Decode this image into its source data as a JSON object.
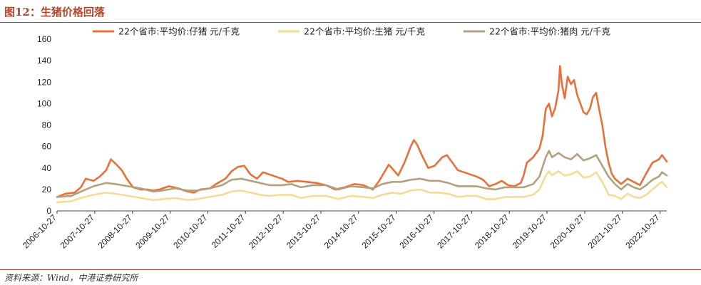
{
  "title": "图12：生猪价格回落",
  "source": "资料来源：Wind，中港证券研究所",
  "colors": {
    "accent": "#b5452b",
    "piglet": "#e8703a",
    "hog": "#f2dc96",
    "pork": "#b3a07e"
  },
  "chart_data": {
    "type": "line",
    "ylim": [
      0,
      160
    ],
    "yticks": [
      0,
      20,
      40,
      60,
      80,
      100,
      120,
      140,
      160
    ],
    "xlim": [
      "2006-10-27",
      "2022-12-31"
    ],
    "xticks": [
      "2006-10-27",
      "2007-10-27",
      "2008-10-27",
      "2009-10-27",
      "2010-10-27",
      "2011-10-27",
      "2012-10-27",
      "2013-10-27",
      "2014-10-27",
      "2015-10-27",
      "2016-10-27",
      "2017-10-27",
      "2018-10-27",
      "2019-10-27",
      "2020-10-27",
      "2021-10-27",
      "2022-10-27"
    ],
    "legend_position": "top",
    "series": [
      {
        "name": "22个省市:平均价:仔猪 元/千克",
        "color": "#e8703a",
        "points": [
          [
            "2006-10-27",
            13
          ],
          [
            "2007-01-15",
            16
          ],
          [
            "2007-04-15",
            17
          ],
          [
            "2007-06-15",
            22
          ],
          [
            "2007-08-01",
            30
          ],
          [
            "2007-10-15",
            28
          ],
          [
            "2007-12-15",
            32
          ],
          [
            "2008-02-15",
            38
          ],
          [
            "2008-04-01",
            48
          ],
          [
            "2008-05-15",
            44
          ],
          [
            "2008-07-15",
            38
          ],
          [
            "2008-09-01",
            30
          ],
          [
            "2008-11-01",
            22
          ],
          [
            "2009-01-15",
            20
          ],
          [
            "2009-03-15",
            20
          ],
          [
            "2009-05-15",
            19
          ],
          [
            "2009-07-15",
            20
          ],
          [
            "2009-10-15",
            23
          ],
          [
            "2010-01-15",
            21
          ],
          [
            "2010-04-15",
            18
          ],
          [
            "2010-06-15",
            17
          ],
          [
            "2010-08-15",
            20
          ],
          [
            "2010-11-15",
            21
          ],
          [
            "2011-01-15",
            25
          ],
          [
            "2011-04-15",
            30
          ],
          [
            "2011-06-15",
            37
          ],
          [
            "2011-08-15",
            41
          ],
          [
            "2011-10-15",
            42
          ],
          [
            "2011-12-15",
            34
          ],
          [
            "2012-02-15",
            30
          ],
          [
            "2012-04-15",
            36
          ],
          [
            "2012-07-15",
            33
          ],
          [
            "2012-10-15",
            30
          ],
          [
            "2012-12-15",
            27
          ],
          [
            "2013-03-15",
            28
          ],
          [
            "2013-06-15",
            27
          ],
          [
            "2013-09-15",
            26
          ],
          [
            "2013-12-15",
            24
          ],
          [
            "2014-03-15",
            20
          ],
          [
            "2014-06-15",
            22
          ],
          [
            "2014-09-15",
            25
          ],
          [
            "2014-12-15",
            24
          ],
          [
            "2015-03-15",
            20
          ],
          [
            "2015-05-15",
            28
          ],
          [
            "2015-07-15",
            38
          ],
          [
            "2015-08-15",
            43
          ],
          [
            "2015-09-15",
            40
          ],
          [
            "2015-11-15",
            33
          ],
          [
            "2016-01-15",
            45
          ],
          [
            "2016-03-15",
            60
          ],
          [
            "2016-04-15",
            66
          ],
          [
            "2016-05-15",
            62
          ],
          [
            "2016-07-01",
            52
          ],
          [
            "2016-09-01",
            40
          ],
          [
            "2016-11-01",
            42
          ],
          [
            "2017-01-15",
            50
          ],
          [
            "2017-03-01",
            52
          ],
          [
            "2017-04-15",
            46
          ],
          [
            "2017-06-15",
            38
          ],
          [
            "2017-08-15",
            36
          ],
          [
            "2017-10-15",
            34
          ],
          [
            "2017-12-15",
            32
          ],
          [
            "2018-02-15",
            29
          ],
          [
            "2018-04-15",
            23
          ],
          [
            "2018-06-15",
            25
          ],
          [
            "2018-08-15",
            28
          ],
          [
            "2018-10-15",
            24
          ],
          [
            "2018-12-15",
            23
          ],
          [
            "2019-02-15",
            26
          ],
          [
            "2019-03-15",
            33
          ],
          [
            "2019-04-15",
            45
          ],
          [
            "2019-06-15",
            50
          ],
          [
            "2019-08-15",
            58
          ],
          [
            "2019-09-15",
            70
          ],
          [
            "2019-10-15",
            95
          ],
          [
            "2019-11-15",
            100
          ],
          [
            "2019-12-15",
            88
          ],
          [
            "2020-01-15",
            96
          ],
          [
            "2020-02-15",
            112
          ],
          [
            "2020-03-01",
            135
          ],
          [
            "2020-03-20",
            118
          ],
          [
            "2020-04-15",
            105
          ],
          [
            "2020-05-15",
            125
          ],
          [
            "2020-06-15",
            118
          ],
          [
            "2020-07-15",
            122
          ],
          [
            "2020-08-15",
            108
          ],
          [
            "2020-09-15",
            100
          ],
          [
            "2020-10-15",
            92
          ],
          [
            "2020-11-15",
            90
          ],
          [
            "2020-12-15",
            95
          ],
          [
            "2021-01-15",
            106
          ],
          [
            "2021-02-15",
            110
          ],
          [
            "2021-03-15",
            95
          ],
          [
            "2021-04-15",
            80
          ],
          [
            "2021-05-15",
            60
          ],
          [
            "2021-06-15",
            45
          ],
          [
            "2021-07-15",
            35
          ],
          [
            "2021-08-15",
            30
          ],
          [
            "2021-10-15",
            25
          ],
          [
            "2021-12-15",
            30
          ],
          [
            "2022-02-15",
            27
          ],
          [
            "2022-04-15",
            24
          ],
          [
            "2022-06-15",
            35
          ],
          [
            "2022-08-15",
            45
          ],
          [
            "2022-10-15",
            48
          ],
          [
            "2022-11-15",
            52
          ],
          [
            "2022-12-31",
            46
          ]
        ]
      },
      {
        "name": "22个省市:平均价:生猪 元/千克",
        "color": "#f2dc96",
        "points": [
          [
            "2006-10-27",
            8
          ],
          [
            "2007-03-15",
            9
          ],
          [
            "2007-06-15",
            12
          ],
          [
            "2007-10-15",
            15
          ],
          [
            "2008-02-15",
            17
          ],
          [
            "2008-05-15",
            16
          ],
          [
            "2008-09-15",
            14
          ],
          [
            "2009-01-15",
            12
          ],
          [
            "2009-05-15",
            10
          ],
          [
            "2009-08-15",
            11
          ],
          [
            "2009-12-15",
            12
          ],
          [
            "2010-04-15",
            10
          ],
          [
            "2010-07-15",
            11
          ],
          [
            "2010-11-15",
            13
          ],
          [
            "2011-03-15",
            15
          ],
          [
            "2011-06-15",
            18
          ],
          [
            "2011-09-15",
            19
          ],
          [
            "2011-12-15",
            17
          ],
          [
            "2012-03-15",
            15
          ],
          [
            "2012-06-15",
            14
          ],
          [
            "2012-10-15",
            15
          ],
          [
            "2013-01-15",
            15
          ],
          [
            "2013-04-15",
            12
          ],
          [
            "2013-08-15",
            14
          ],
          [
            "2013-12-15",
            14
          ],
          [
            "2014-04-15",
            11
          ],
          [
            "2014-08-15",
            14
          ],
          [
            "2014-12-15",
            13
          ],
          [
            "2015-03-15",
            12
          ],
          [
            "2015-06-15",
            15
          ],
          [
            "2015-09-15",
            17
          ],
          [
            "2015-12-15",
            16
          ],
          [
            "2016-03-15",
            19
          ],
          [
            "2016-06-15",
            20
          ],
          [
            "2016-09-15",
            17
          ],
          [
            "2016-12-15",
            17
          ],
          [
            "2017-03-15",
            16
          ],
          [
            "2017-06-15",
            13
          ],
          [
            "2017-09-15",
            14
          ],
          [
            "2017-12-15",
            14
          ],
          [
            "2018-03-15",
            11
          ],
          [
            "2018-06-15",
            11
          ],
          [
            "2018-09-15",
            13
          ],
          [
            "2018-12-15",
            13
          ],
          [
            "2019-03-15",
            13
          ],
          [
            "2019-06-15",
            15
          ],
          [
            "2019-08-15",
            20
          ],
          [
            "2019-10-15",
            33
          ],
          [
            "2019-11-15",
            37
          ],
          [
            "2019-12-15",
            33
          ],
          [
            "2020-02-15",
            37
          ],
          [
            "2020-04-15",
            33
          ],
          [
            "2020-06-15",
            34
          ],
          [
            "2020-08-15",
            37
          ],
          [
            "2020-10-15",
            31
          ],
          [
            "2020-12-15",
            32
          ],
          [
            "2021-02-15",
            36
          ],
          [
            "2021-04-15",
            27
          ],
          [
            "2021-06-15",
            15
          ],
          [
            "2021-08-15",
            14
          ],
          [
            "2021-10-15",
            11
          ],
          [
            "2021-12-15",
            16
          ],
          [
            "2022-02-15",
            13
          ],
          [
            "2022-04-15",
            12
          ],
          [
            "2022-06-15",
            15
          ],
          [
            "2022-08-15",
            20
          ],
          [
            "2022-10-15",
            25
          ],
          [
            "2022-11-15",
            27
          ],
          [
            "2022-12-31",
            22
          ]
        ]
      },
      {
        "name": "22个省市:平均价:猪肉 元/千克",
        "color": "#b3a07e",
        "points": [
          [
            "2006-10-27",
            13
          ],
          [
            "2007-03-15",
            14
          ],
          [
            "2007-06-15",
            18
          ],
          [
            "2007-10-15",
            23
          ],
          [
            "2008-02-15",
            26
          ],
          [
            "2008-05-15",
            25
          ],
          [
            "2008-09-15",
            23
          ],
          [
            "2009-01-15",
            21
          ],
          [
            "2009-05-15",
            18
          ],
          [
            "2009-08-15",
            19
          ],
          [
            "2009-12-15",
            21
          ],
          [
            "2010-04-15",
            19
          ],
          [
            "2010-07-15",
            19
          ],
          [
            "2010-11-15",
            21
          ],
          [
            "2011-03-15",
            24
          ],
          [
            "2011-06-15",
            29
          ],
          [
            "2011-09-15",
            30
          ],
          [
            "2011-12-15",
            28
          ],
          [
            "2012-03-15",
            26
          ],
          [
            "2012-06-15",
            24
          ],
          [
            "2012-10-15",
            24
          ],
          [
            "2013-01-15",
            25
          ],
          [
            "2013-04-15",
            22
          ],
          [
            "2013-08-15",
            24
          ],
          [
            "2013-12-15",
            24
          ],
          [
            "2014-04-15",
            20
          ],
          [
            "2014-08-15",
            23
          ],
          [
            "2014-12-15",
            22
          ],
          [
            "2015-03-15",
            21
          ],
          [
            "2015-06-15",
            25
          ],
          [
            "2015-09-15",
            27
          ],
          [
            "2015-12-15",
            27
          ],
          [
            "2016-03-15",
            29
          ],
          [
            "2016-06-15",
            30
          ],
          [
            "2016-09-15",
            28
          ],
          [
            "2016-12-15",
            28
          ],
          [
            "2017-03-15",
            26
          ],
          [
            "2017-06-15",
            23
          ],
          [
            "2017-09-15",
            23
          ],
          [
            "2017-12-15",
            23
          ],
          [
            "2018-03-15",
            21
          ],
          [
            "2018-06-15",
            20
          ],
          [
            "2018-09-15",
            22
          ],
          [
            "2018-12-15",
            22
          ],
          [
            "2019-03-15",
            22
          ],
          [
            "2019-06-15",
            25
          ],
          [
            "2019-08-15",
            32
          ],
          [
            "2019-10-15",
            50
          ],
          [
            "2019-11-15",
            56
          ],
          [
            "2019-12-15",
            50
          ],
          [
            "2020-02-15",
            54
          ],
          [
            "2020-04-15",
            50
          ],
          [
            "2020-06-15",
            48
          ],
          [
            "2020-08-15",
            53
          ],
          [
            "2020-10-15",
            47
          ],
          [
            "2020-12-15",
            49
          ],
          [
            "2021-02-15",
            52
          ],
          [
            "2021-04-15",
            42
          ],
          [
            "2021-06-15",
            32
          ],
          [
            "2021-08-15",
            25
          ],
          [
            "2021-10-15",
            20
          ],
          [
            "2021-12-15",
            25
          ],
          [
            "2022-02-15",
            22
          ],
          [
            "2022-04-15",
            20
          ],
          [
            "2022-06-15",
            24
          ],
          [
            "2022-08-15",
            29
          ],
          [
            "2022-10-15",
            32
          ],
          [
            "2022-11-15",
            36
          ],
          [
            "2022-12-31",
            33
          ]
        ]
      }
    ]
  }
}
